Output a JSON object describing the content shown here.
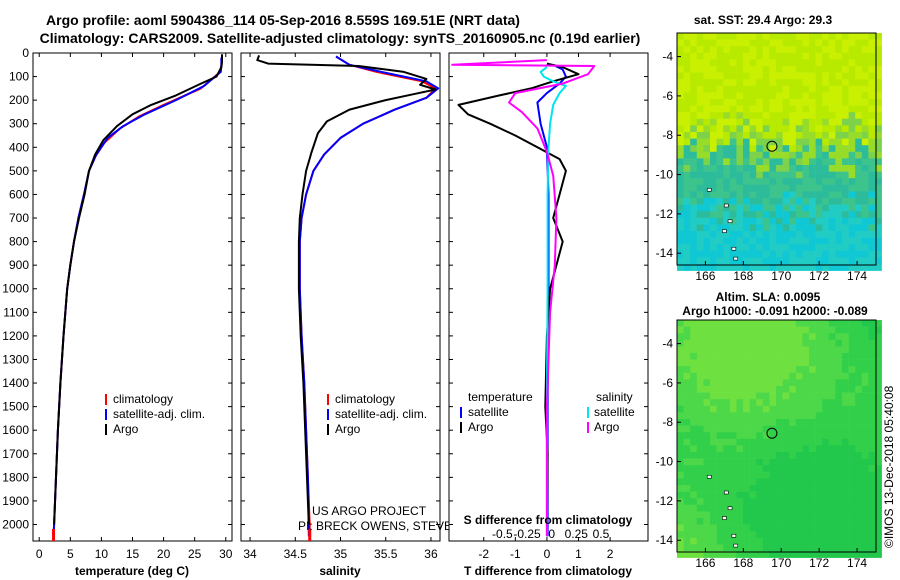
{
  "title_line1": "Argo profile: aoml 5904386_114 05-Sep-2016 8.559S 169.51E (NRT data)",
  "title_line2": "Climatology: CARS2009. Satellite-adjusted climatology: synTS_20160905.nc (0.19d earlier)",
  "credits": {
    "line1": "US ARGO PROJECT",
    "line2": "PI: BRECK OWENS, STEVE JAYNE, P.E. ROBBINS"
  },
  "watermark": "©IMOS 13-Dec-2018 05:40:08",
  "colors": {
    "climatology": "#ff0000",
    "satellite": "#0000ff",
    "argo": "#000000",
    "sat_salinity": "#00e5ee",
    "argo_salinity": "#ff00ff"
  },
  "chart_data": [
    {
      "type": "line",
      "id": "temperature",
      "xlabel": "temperature (deg C)",
      "xlim": [
        -1,
        31
      ],
      "xticks": [
        0,
        5,
        10,
        15,
        20,
        25,
        30
      ],
      "ylim": [
        2070,
        0
      ],
      "yticks": [
        0,
        100,
        200,
        300,
        400,
        500,
        600,
        700,
        800,
        900,
        1000,
        1100,
        1200,
        1300,
        1400,
        1500,
        1600,
        1700,
        1800,
        1900,
        2000
      ],
      "legend": [
        "climatology",
        "satellite-adj. clim.",
        "Argo"
      ],
      "series": [
        {
          "name": "climatology",
          "color": "#ff0000",
          "points": [
            [
              29.3,
              20
            ],
            [
              29.3,
              50
            ],
            [
              29.1,
              80
            ],
            [
              26,
              150
            ],
            [
              20,
              220
            ],
            [
              16,
              270
            ],
            [
              13,
              320
            ],
            [
              10.5,
              380
            ],
            [
              9,
              440
            ],
            [
              8,
              500
            ],
            [
              7.2,
              600
            ],
            [
              6.3,
              700
            ],
            [
              5.6,
              800
            ],
            [
              5.0,
              900
            ],
            [
              4.5,
              1000
            ],
            [
              3.9,
              1200
            ],
            [
              3.4,
              1400
            ],
            [
              3.0,
              1600
            ],
            [
              2.7,
              1800
            ],
            [
              2.4,
              2000
            ],
            [
              2.3,
              2050
            ]
          ]
        },
        {
          "name": "satellite-adj. clim.",
          "color": "#0000ff",
          "points": [
            [
              29.3,
              20
            ],
            [
              29.3,
              50
            ],
            [
              29.2,
              80
            ],
            [
              26.5,
              140
            ],
            [
              22,
              200
            ],
            [
              17,
              260
            ],
            [
              13.5,
              310
            ],
            [
              11,
              360
            ],
            [
              9.2,
              430
            ],
            [
              8,
              500
            ],
            [
              7.2,
              600
            ],
            [
              6.3,
              700
            ],
            [
              5.6,
              800
            ],
            [
              5.0,
              900
            ],
            [
              4.5,
              1000
            ],
            [
              3.9,
              1200
            ],
            [
              3.4,
              1400
            ],
            [
              3.0,
              1600
            ],
            [
              2.7,
              1800
            ],
            [
              2.4,
              2000
            ],
            [
              2.3,
              2050
            ]
          ]
        },
        {
          "name": "Argo",
          "color": "#000000",
          "points": [
            [
              29.4,
              5
            ],
            [
              29.4,
              40
            ],
            [
              29.3,
              60
            ],
            [
              28.5,
              100
            ],
            [
              26,
              130
            ],
            [
              22,
              180
            ],
            [
              18,
              220
            ],
            [
              15,
              260
            ],
            [
              12.5,
              310
            ],
            [
              10.3,
              370
            ],
            [
              9,
              430
            ],
            [
              8,
              500
            ],
            [
              7.3,
              600
            ],
            [
              6.4,
              700
            ],
            [
              5.6,
              800
            ],
            [
              5.0,
              900
            ],
            [
              4.5,
              1000
            ],
            [
              3.9,
              1200
            ],
            [
              3.4,
              1400
            ],
            [
              3.0,
              1600
            ],
            [
              2.7,
              1800
            ],
            [
              2.4,
              2000
            ]
          ]
        }
      ]
    },
    {
      "type": "line",
      "id": "salinity",
      "xlabel": "salinity",
      "xlim": [
        33.9,
        36.1
      ],
      "xticks": [
        34,
        34.5,
        35,
        35.5,
        36
      ],
      "xticklabels": [
        "34",
        "34.5",
        "35",
        "35.5",
        "36"
      ],
      "ylim": [
        2070,
        0
      ],
      "legend": [
        "climatology",
        "satellite-adj. clim.",
        "Argo"
      ],
      "series": [
        {
          "name": "climatology",
          "color": "#ff0000",
          "points": [
            [
              34.95,
              15
            ],
            [
              35.1,
              50
            ],
            [
              35.4,
              80
            ],
            [
              35.9,
              120
            ],
            [
              36.05,
              150
            ],
            [
              35.95,
              190
            ],
            [
              35.6,
              240
            ],
            [
              35.25,
              300
            ],
            [
              35.0,
              360
            ],
            [
              34.82,
              430
            ],
            [
              34.7,
              500
            ],
            [
              34.62,
              600
            ],
            [
              34.57,
              700
            ],
            [
              34.55,
              800
            ],
            [
              34.55,
              1000
            ],
            [
              34.57,
              1200
            ],
            [
              34.6,
              1400
            ],
            [
              34.62,
              1600
            ],
            [
              34.64,
              1800
            ],
            [
              34.66,
              2000
            ],
            [
              34.66,
              2050
            ]
          ]
        },
        {
          "name": "satellite-adj. clim.",
          "color": "#0000ff",
          "points": [
            [
              34.95,
              15
            ],
            [
              35.1,
              50
            ],
            [
              35.45,
              80
            ],
            [
              35.95,
              120
            ],
            [
              36.08,
              150
            ],
            [
              35.95,
              190
            ],
            [
              35.6,
              240
            ],
            [
              35.25,
              300
            ],
            [
              35.0,
              360
            ],
            [
              34.82,
              430
            ],
            [
              34.7,
              500
            ],
            [
              34.62,
              600
            ],
            [
              34.57,
              700
            ],
            [
              34.55,
              800
            ],
            [
              34.55,
              1000
            ],
            [
              34.57,
              1200
            ],
            [
              34.6,
              1400
            ],
            [
              34.62,
              1600
            ],
            [
              34.64,
              1800
            ],
            [
              34.65,
              2000
            ],
            [
              34.65,
              2050
            ]
          ]
        },
        {
          "name": "Argo",
          "color": "#000000",
          "points": [
            [
              34.1,
              10
            ],
            [
              34.08,
              30
            ],
            [
              34.2,
              45
            ],
            [
              35.2,
              55
            ],
            [
              35.7,
              80
            ],
            [
              35.95,
              110
            ],
            [
              35.88,
              135
            ],
            [
              36.05,
              155
            ],
            [
              35.8,
              175
            ],
            [
              35.5,
              200
            ],
            [
              35.1,
              240
            ],
            [
              34.85,
              290
            ],
            [
              34.75,
              340
            ],
            [
              34.68,
              420
            ],
            [
              34.62,
              500
            ],
            [
              34.58,
              600
            ],
            [
              34.55,
              700
            ],
            [
              34.54,
              800
            ],
            [
              34.54,
              1000
            ],
            [
              34.56,
              1200
            ],
            [
              34.59,
              1400
            ],
            [
              34.61,
              1600
            ],
            [
              34.63,
              1800
            ],
            [
              34.65,
              2000
            ]
          ]
        }
      ]
    },
    {
      "type": "line",
      "id": "difference",
      "xlabel": "T difference from climatology",
      "xlabel_top": "S difference from climatology",
      "xlim": [
        -3.1,
        3.2
      ],
      "xticks": [
        -2,
        -1,
        0,
        1,
        2
      ],
      "xticklabels": [
        "-2",
        "-1",
        "0",
        "1",
        "2"
      ],
      "sticks_labels": [
        "-0.5",
        "-0.25",
        "0",
        "0.25",
        "0.5"
      ],
      "ylim": [
        2070,
        0
      ],
      "legend_left_title": "temperature",
      "legend_right_title": "salinity",
      "legend": [
        "satellite",
        "Argo"
      ],
      "series": [
        {
          "name": "T satellite",
          "color": "#0000ff",
          "points": [
            [
              0.2,
              50
            ],
            [
              0.5,
              70
            ],
            [
              0.6,
              100
            ],
            [
              0.4,
              130
            ],
            [
              0,
              170
            ],
            [
              -0.3,
              210
            ],
            [
              -0.2,
              300
            ],
            [
              0,
              400
            ],
            [
              0.05,
              600
            ],
            [
              0.05,
              1000
            ],
            [
              0.02,
              1500
            ],
            [
              0.02,
              2050
            ]
          ]
        },
        {
          "name": "T Argo",
          "color": "#000000",
          "points": [
            [
              0,
              45
            ],
            [
              0.5,
              60
            ],
            [
              1.0,
              90
            ],
            [
              0.2,
              120
            ],
            [
              -0.5,
              150
            ],
            [
              -1.5,
              180
            ],
            [
              -2.8,
              220
            ],
            [
              -2.5,
              260
            ],
            [
              -1.8,
              300
            ],
            [
              -1,
              350
            ],
            [
              -0.3,
              400
            ],
            [
              0.4,
              450
            ],
            [
              0.6,
              500
            ],
            [
              0.4,
              600
            ],
            [
              0.2,
              700
            ],
            [
              0.5,
              800
            ],
            [
              0.3,
              900
            ],
            [
              0.1,
              1000
            ],
            [
              0,
              1200
            ],
            [
              -0.05,
              1500
            ],
            [
              0.02,
              1700
            ],
            [
              0,
              2000
            ]
          ]
        },
        {
          "name": "S satellite",
          "color": "#00e5ee",
          "points": [
            [
              0,
              60
            ],
            [
              -0.2,
              80
            ],
            [
              -0.1,
              100
            ],
            [
              0.2,
              120
            ],
            [
              0.6,
              140
            ],
            [
              0.4,
              170
            ],
            [
              0.2,
              220
            ],
            [
              0.1,
              300
            ],
            [
              0.05,
              400
            ],
            [
              0.02,
              600
            ],
            [
              0.02,
              1000
            ],
            [
              0,
              1500
            ],
            [
              0,
              2050
            ]
          ]
        },
        {
          "name": "S Argo",
          "color": "#ff00ff",
          "points": [
            [
              0,
              30
            ],
            [
              -3.0,
              50
            ],
            [
              1.5,
              55
            ],
            [
              1.3,
              90
            ],
            [
              0.5,
              130
            ],
            [
              -1.0,
              170
            ],
            [
              -1.2,
              210
            ],
            [
              -0.8,
              250
            ],
            [
              -0.3,
              320
            ],
            [
              0,
              420
            ],
            [
              0.2,
              520
            ],
            [
              0.3,
              700
            ],
            [
              0.25,
              900
            ],
            [
              0.1,
              1100
            ],
            [
              0.05,
              1300
            ],
            [
              0,
              1500
            ],
            [
              0,
              2050
            ]
          ]
        }
      ]
    },
    {
      "type": "heatmap",
      "id": "sst_map",
      "title": "sat. SST: 29.4 Argo: 29.3",
      "xlim": [
        164.5,
        175
      ],
      "ylim": [
        -14.6,
        -2.8
      ],
      "xticks": [
        166,
        168,
        170,
        172,
        174
      ],
      "yticks": [
        -4,
        -6,
        -8,
        -10,
        -12,
        -14
      ],
      "profile_location": [
        169.51,
        -8.559
      ]
    },
    {
      "type": "heatmap",
      "id": "sla_map",
      "title_line1": "Altim. SLA: 0.0095",
      "title_line2": "Argo h1000: -0.091 h2000: -0.089",
      "xlim": [
        164.5,
        175
      ],
      "ylim": [
        -14.6,
        -2.8
      ],
      "xticks": [
        166,
        168,
        170,
        172,
        174
      ],
      "yticks": [
        -4,
        -6,
        -8,
        -10,
        -12,
        -14
      ],
      "profile_location": [
        169.51,
        -8.559
      ]
    }
  ]
}
